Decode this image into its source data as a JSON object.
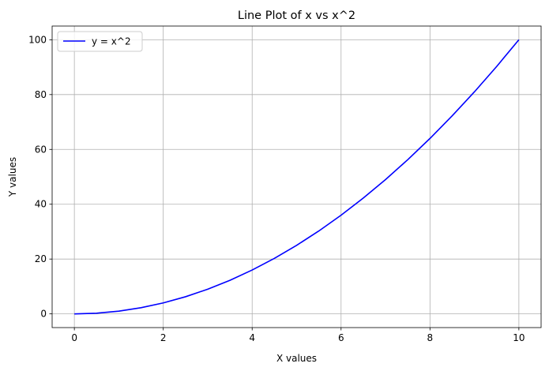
{
  "chart_data": {
    "type": "line",
    "title": "Line Plot of x vs x^2",
    "xlabel": "X values",
    "ylabel": "Y values",
    "xlim": [
      -0.5,
      10.5
    ],
    "ylim": [
      -5,
      105
    ],
    "xticks": [
      0,
      2,
      4,
      6,
      8,
      10
    ],
    "yticks": [
      0,
      20,
      40,
      60,
      80,
      100
    ],
    "grid": true,
    "legend_placement": "top-left",
    "series": [
      {
        "name": "y = x^2",
        "color": "#0000ff",
        "x": [
          0,
          0.5,
          1,
          1.5,
          2,
          2.5,
          3,
          3.5,
          4,
          4.5,
          5,
          5.5,
          6,
          6.5,
          7,
          7.5,
          8,
          8.5,
          9,
          9.5,
          10
        ],
        "y": [
          0,
          0.25,
          1,
          2.25,
          4,
          6.25,
          9,
          12.25,
          16,
          20.25,
          25,
          30.25,
          36,
          42.25,
          49,
          56.25,
          64,
          72.25,
          81,
          90.25,
          100
        ]
      }
    ]
  }
}
